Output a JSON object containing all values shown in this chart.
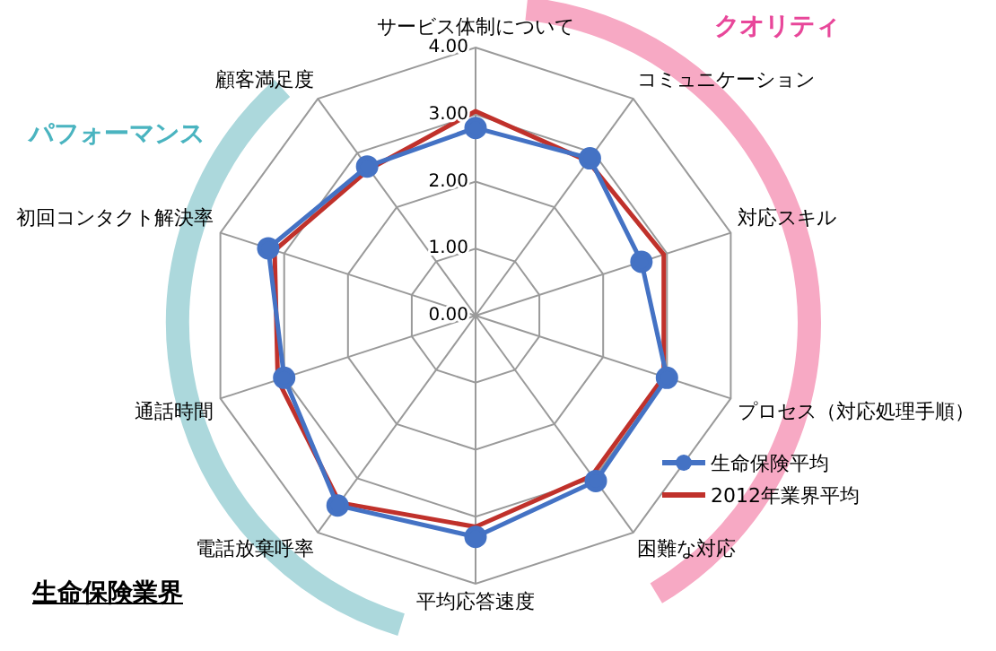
{
  "chart_data": {
    "type": "radar",
    "title": "生命保険業界",
    "categories": [
      "サービス体制について",
      "コミュニケーション",
      "対応スキル",
      "プロセス（対応処理手順）",
      "困難な対応",
      "平均応答速度",
      "電話放棄呼率",
      "通話時間",
      "初回コンタクト解決率",
      "顧客満足度"
    ],
    "series": [
      {
        "name": "生命保険平均",
        "color": "#4472c4",
        "marker": "circle",
        "values": [
          2.8,
          2.9,
          2.6,
          3.0,
          3.05,
          3.3,
          3.5,
          3.0,
          3.25,
          2.75
        ]
      },
      {
        "name": "2012年業界平均",
        "color": "#c0312b",
        "marker": "none",
        "values": [
          3.05,
          2.85,
          2.95,
          2.95,
          2.95,
          3.15,
          3.45,
          3.1,
          3.15,
          2.7
        ]
      }
    ],
    "ylim": [
      0,
      4
    ],
    "yticks": [
      {
        "value": 0,
        "label": "0.00"
      },
      {
        "value": 1,
        "label": "1.00"
      },
      {
        "value": 2,
        "label": "2.00"
      },
      {
        "value": 3,
        "label": "3.00"
      },
      {
        "value": 4,
        "label": "4.00"
      }
    ],
    "grid": true,
    "legend": "right",
    "annotations": [
      "クオリティ",
      "パフォーマンス"
    ]
  }
}
